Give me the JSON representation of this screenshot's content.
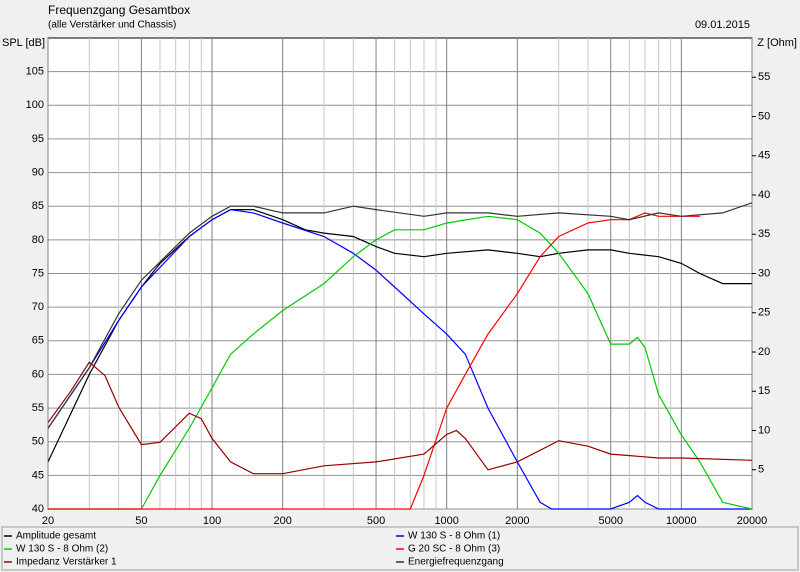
{
  "chart_data": {
    "type": "line",
    "title": "Frequenzgang Gesamtbox",
    "subtitle": "(alle Verstärker und Chassis)",
    "date": "09.01.2015",
    "y_label": "SPL [dB]",
    "y2_label": "Z [Ohm]",
    "xscale": "log",
    "xlim": [
      20,
      20000
    ],
    "xticks": [
      20,
      50,
      100,
      200,
      500,
      1000,
      2000,
      5000,
      10000,
      20000
    ],
    "xminorticks": [
      30,
      40,
      60,
      70,
      80,
      90,
      300,
      400,
      600,
      700,
      800,
      900,
      3000,
      4000,
      6000,
      7000,
      8000,
      9000
    ],
    "ylim": [
      40,
      110
    ],
    "yticks": [
      40,
      45,
      50,
      55,
      60,
      65,
      70,
      75,
      80,
      85,
      90,
      95,
      100,
      105
    ],
    "y2lim": [
      0,
      60
    ],
    "y2ticks": [
      5,
      10,
      15,
      20,
      25,
      30,
      35,
      40,
      45,
      50,
      55
    ],
    "grid": true,
    "series": [
      {
        "name": "Amplitude gesamt",
        "color": "#000000",
        "x": [
          20,
          30,
          40,
          50,
          60,
          80,
          100,
          120,
          150,
          200,
          250,
          300,
          400,
          500,
          600,
          800,
          1000,
          1500,
          2000,
          2500,
          3000,
          4000,
          5000,
          6000,
          8000,
          10000,
          12000,
          15000,
          20000
        ],
        "values": [
          47,
          60,
          68,
          73,
          76.5,
          80.5,
          83,
          84.5,
          84.5,
          83,
          81.5,
          81,
          80.5,
          79,
          78,
          77.5,
          78,
          78.5,
          78,
          77.5,
          78,
          78.5,
          78.5,
          78,
          77.5,
          76.5,
          75,
          73.5,
          73.5
        ]
      },
      {
        "name": "W 130 S - 8 Ohm (1)",
        "color": "#0000ff",
        "x": [
          20,
          30,
          40,
          50,
          80,
          100,
          120,
          150,
          200,
          300,
          400,
          500,
          600,
          800,
          1000,
          1200,
          1500,
          2000,
          2500,
          2800,
          5000,
          6000,
          6500,
          7000,
          8000,
          20000
        ],
        "values": [
          52,
          61,
          68,
          73,
          80.5,
          83,
          84.5,
          84,
          82.5,
          80.5,
          78,
          75.5,
          73,
          69,
          66,
          63,
          55,
          47,
          41,
          40,
          40,
          41,
          42,
          41,
          40,
          40
        ]
      },
      {
        "name": "W 130 S - 8 Ohm (2)",
        "color": "#00cc00",
        "x": [
          20,
          50,
          60,
          80,
          100,
          120,
          150,
          200,
          300,
          400,
          500,
          600,
          800,
          1000,
          1500,
          2000,
          2500,
          3000,
          4000,
          5000,
          6000,
          6500,
          7000,
          8000,
          10000,
          12000,
          15000,
          20000
        ],
        "values": [
          40,
          40,
          45,
          52,
          58,
          63,
          66,
          69.5,
          73.5,
          77.5,
          80,
          81.5,
          81.5,
          82.5,
          83.5,
          83,
          81,
          78,
          72,
          64.5,
          64.5,
          65.5,
          64,
          57,
          51,
          47,
          41,
          40
        ]
      },
      {
        "name": "G 20 SC - 8 Ohm (3)",
        "color": "#ff0000",
        "x": [
          20,
          700,
          800,
          1000,
          1200,
          1500,
          2000,
          2500,
          3000,
          4000,
          5000,
          6000,
          7000,
          8000,
          10000,
          12000
        ],
        "values": [
          40,
          40,
          45,
          55,
          60,
          66,
          72,
          77.5,
          80.5,
          82.5,
          83,
          83,
          84,
          83.5,
          83.5,
          83.5
        ]
      },
      {
        "name": "Impedanz Verstärker 1",
        "color": "#990000",
        "axis": "y2",
        "x": [
          20,
          25,
          30,
          35,
          40,
          50,
          60,
          80,
          90,
          100,
          120,
          150,
          200,
          300,
          500,
          800,
          1000,
          1100,
          1200,
          1500,
          2000,
          3000,
          4000,
          5000,
          8000,
          10000,
          20000
        ],
        "values": [
          11,
          15,
          18.7,
          17,
          13,
          8.2,
          8.5,
          12.2,
          11.5,
          9,
          6,
          4.5,
          4.5,
          5.5,
          6,
          7,
          9.5,
          10,
          9,
          5,
          6,
          8.7,
          8,
          7,
          6.5,
          6.5,
          6.2
        ]
      },
      {
        "name": "Energiefrequenzgang",
        "color": "#333333",
        "x": [
          20,
          30,
          40,
          50,
          80,
          100,
          120,
          150,
          200,
          250,
          300,
          400,
          500,
          800,
          1000,
          1500,
          2000,
          3000,
          5000,
          6000,
          8000,
          10000,
          15000,
          20000
        ],
        "values": [
          52,
          61,
          69,
          74,
          81,
          83.5,
          85,
          85,
          84,
          84,
          84,
          85,
          84.5,
          83.5,
          84,
          84,
          83.5,
          84,
          83.5,
          83,
          84,
          83.5,
          84,
          85.5
        ]
      }
    ]
  }
}
